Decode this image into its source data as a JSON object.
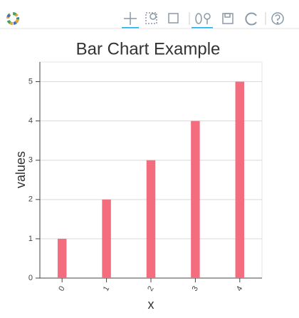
{
  "chart_data": {
    "type": "bar",
    "title": "Bar Chart Example",
    "x_label": "x",
    "y_label": "values",
    "x": [
      0,
      1,
      2,
      3,
      4
    ],
    "values": [
      1,
      2,
      3,
      4,
      5
    ],
    "color": "#f46d7e",
    "xlim": [
      -0.5,
      4.5
    ],
    "xticks": [
      0,
      1,
      2,
      3,
      4
    ],
    "ylim": [
      0,
      5.5
    ],
    "yticks": [
      0,
      1,
      2,
      3,
      4,
      5
    ],
    "grid": true
  }
}
